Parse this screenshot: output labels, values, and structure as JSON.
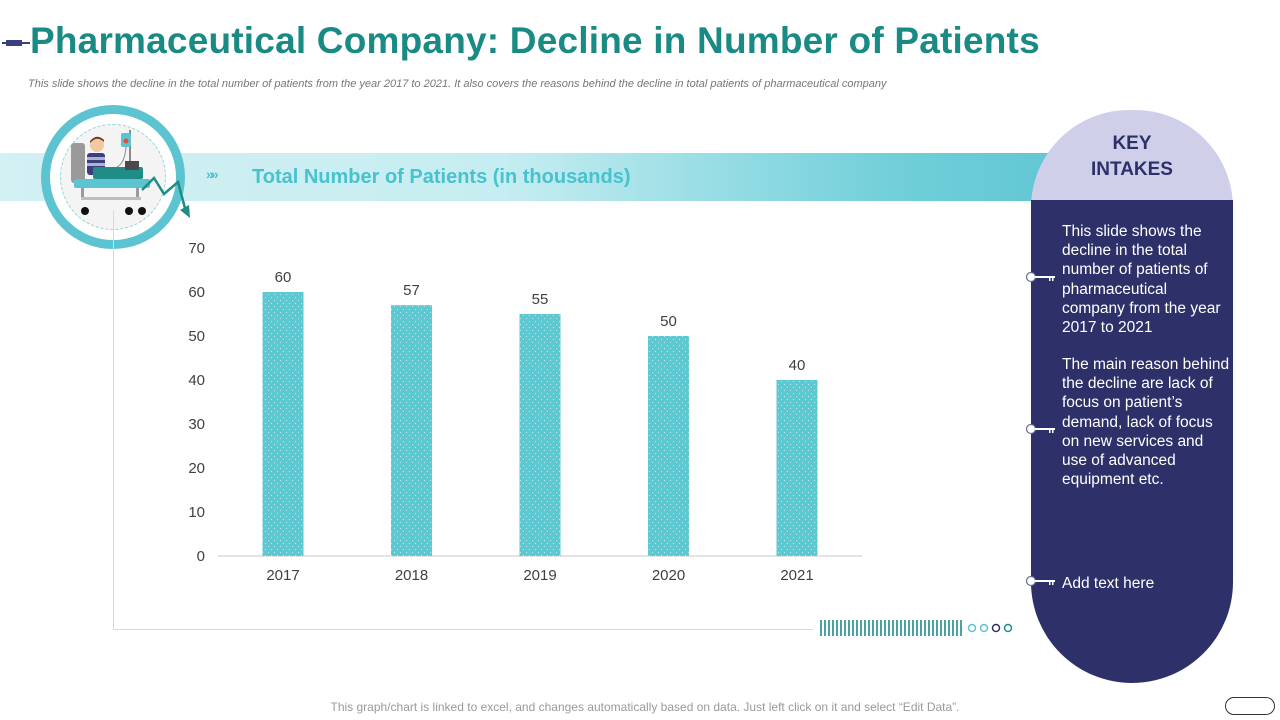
{
  "header": {
    "title": "Pharmaceutical Company: Decline in Number of Patients",
    "subtitle": "This slide shows the decline in the total number of patients from the year 2017 to 2021. It also covers the reasons behind the decline in total patients of pharmaceutical company"
  },
  "band": {
    "chevrons": "»»",
    "title": "Total Number of Patients (in thousands)"
  },
  "chart_data": {
    "type": "bar",
    "title": "Total Number of Patients (in thousands)",
    "categories": [
      "2017",
      "2018",
      "2019",
      "2020",
      "2021"
    ],
    "values": [
      60,
      57,
      55,
      50,
      40
    ],
    "data_labels": [
      "60",
      "57",
      "55",
      "50",
      "40"
    ],
    "ylim": [
      0,
      70
    ],
    "yticks": [
      0,
      10,
      20,
      30,
      40,
      50,
      60,
      70
    ],
    "xlabel": "",
    "ylabel": "",
    "grid": false,
    "bar_color": "#5cc8d2"
  },
  "panel": {
    "heading_line1": "KEY",
    "heading_line2": "INTAKES",
    "point1": "This slide shows the decline in the total number of patients of pharmaceutical company from the year 2017 to 2021",
    "point2": "The main reason behind the decline are lack of focus on patient’s demand, lack of focus on new services and use of advanced equipment etc.",
    "point3": "Add text here"
  },
  "footer": {
    "note": "This graph/chart is linked to excel, and changes automatically based on data. Just left click on it and select “Edit Data”."
  },
  "colors": {
    "title": "#1a8a84",
    "accent": "#5cc4d0",
    "panel": "#2e3169",
    "panel_top": "#cfcfea"
  },
  "icons": [
    "syringe-icon",
    "patient-bed-icon",
    "decline-arrow-icon",
    "key-icon"
  ]
}
